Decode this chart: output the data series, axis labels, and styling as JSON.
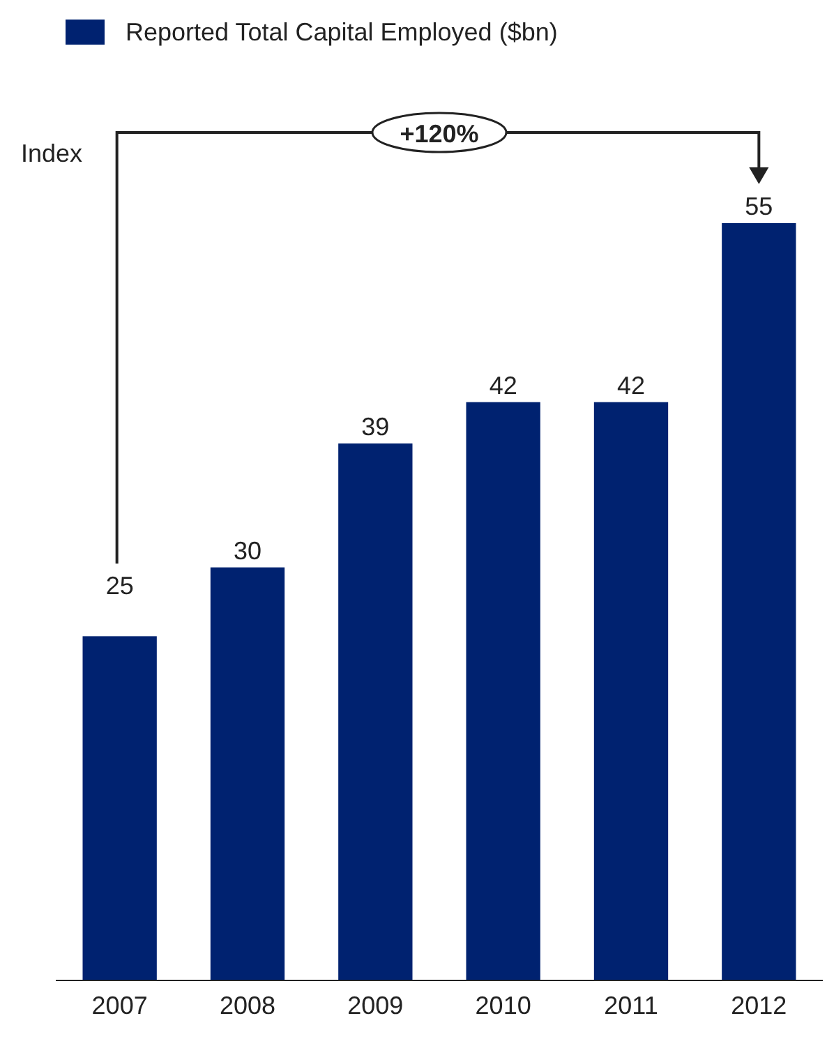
{
  "chart_data": {
    "type": "bar",
    "ylabel": "Index",
    "categories": [
      "2007",
      "2008",
      "2009",
      "2010",
      "2011",
      "2012"
    ],
    "series": [
      {
        "name": "Reported Total Capital Employed ($bn)",
        "color": "#002270",
        "values": [
          25,
          30,
          39,
          42,
          42,
          55
        ]
      }
    ],
    "data_labels": true,
    "legend": "top left",
    "annotations": [
      "+120%"
    ]
  }
}
